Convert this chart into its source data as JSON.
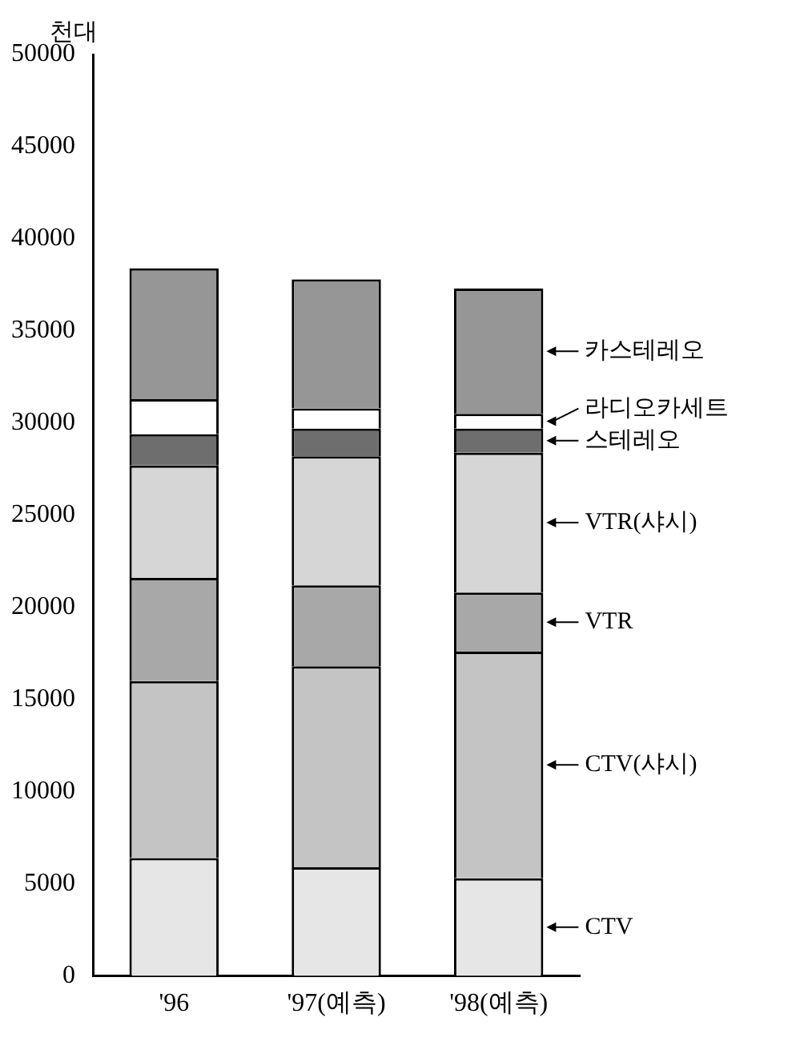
{
  "chart_data": {
    "type": "bar",
    "stacked": true,
    "ylabel": "천대",
    "categories": [
      "'96",
      "'97(예측)",
      "'98(예측)"
    ],
    "ylim": [
      0,
      50000
    ],
    "yticks": [
      0,
      5000,
      10000,
      15000,
      20000,
      25000,
      30000,
      35000,
      40000,
      45000,
      50000
    ],
    "grid": false,
    "legend": false,
    "series": [
      {
        "name": "CTV",
        "color": "#e6e6e6",
        "values": [
          6400,
          5900,
          5300
        ]
      },
      {
        "name": "CTV(샤시)",
        "color": "#c4c4c4",
        "values": [
          9600,
          10900,
          12300
        ]
      },
      {
        "name": "VTR",
        "color": "#a8a8a8",
        "values": [
          5600,
          4400,
          3200
        ]
      },
      {
        "name": "VTR(샤시)",
        "color": "#d6d6d6",
        "values": [
          6100,
          7000,
          7600
        ]
      },
      {
        "name": "스테레오",
        "color": "#6e6e6e",
        "values": [
          1700,
          1500,
          1300
        ]
      },
      {
        "name": "라디오카세트",
        "color": "#ffffff",
        "values": [
          1900,
          1100,
          800
        ]
      },
      {
        "name": "카스테레오",
        "color": "#969696",
        "values": [
          7100,
          7000,
          6800
        ]
      }
    ]
  }
}
